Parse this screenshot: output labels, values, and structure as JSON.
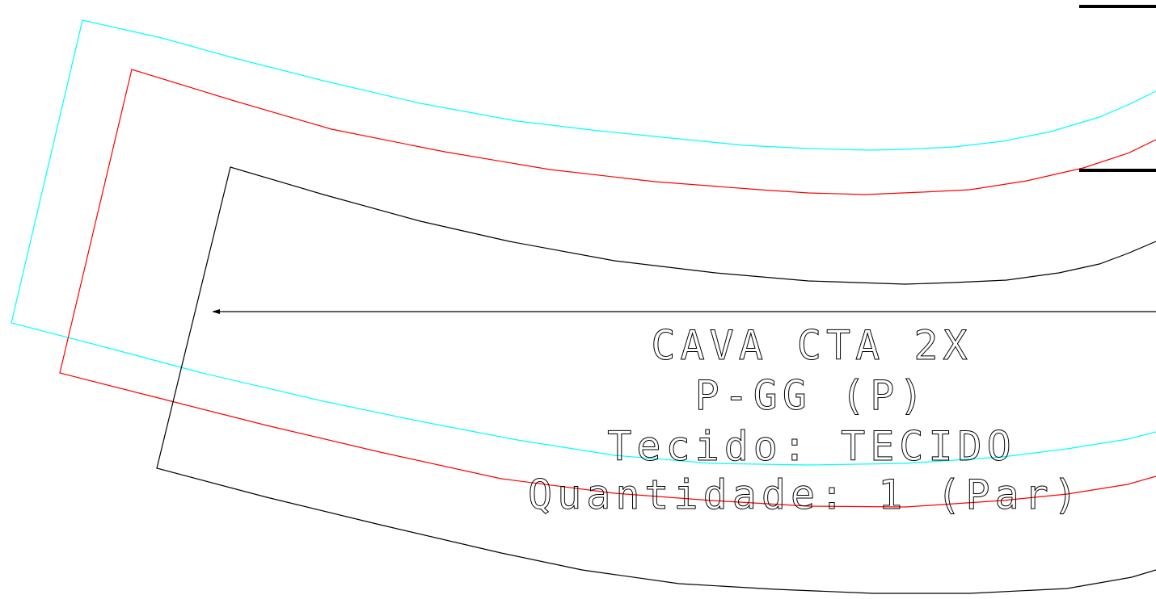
{
  "pattern_piece": {
    "label_lines": [
      "CAVA CTA 2X",
      "P-GG (P)",
      "Tecido: TECIDO",
      "Quantidade: 1 (Par)"
    ]
  },
  "colors": {
    "background": "#ffffff",
    "outer_outline": "#00ffff",
    "middle_outline": "#ff0000",
    "inner_outline": "#000000",
    "grain_line": "#000000",
    "label_text": "#000000",
    "edge_marks": "#000000"
  }
}
